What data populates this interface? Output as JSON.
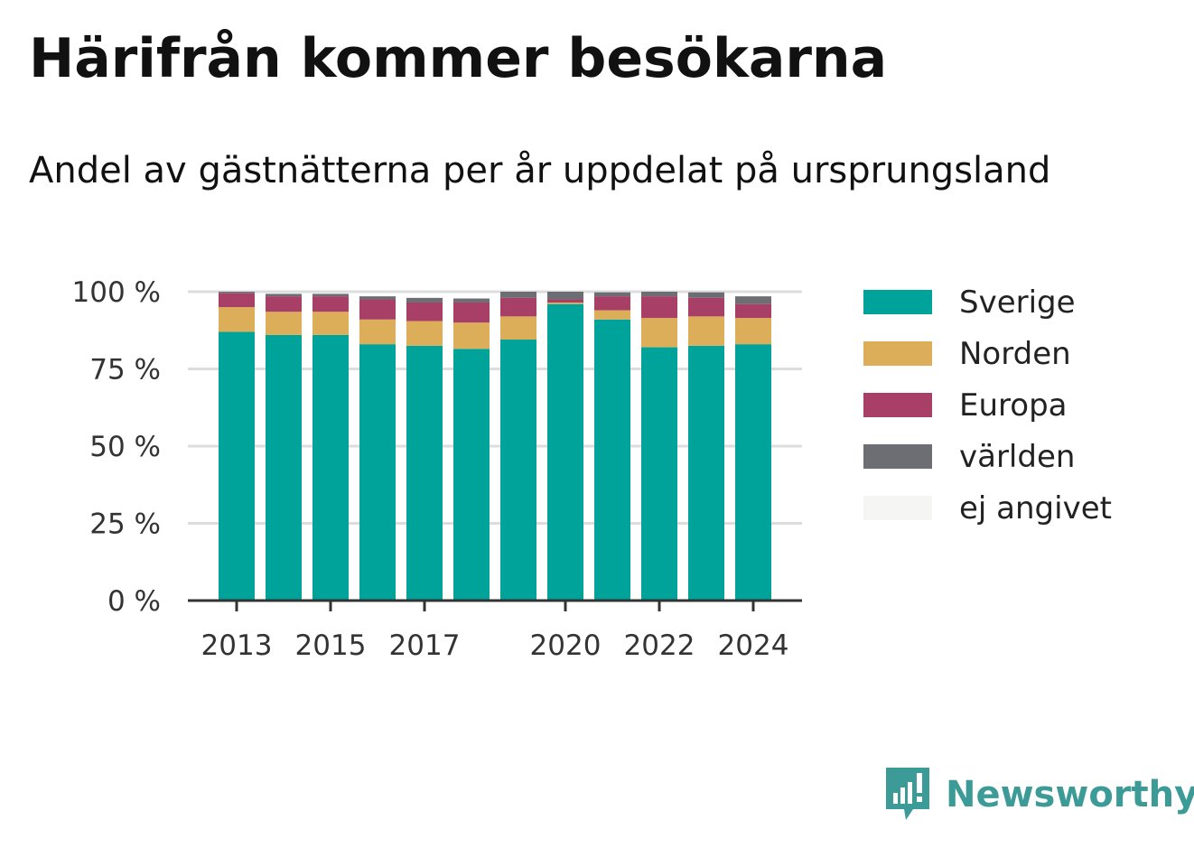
{
  "title": "Härifrån kommer besökarna",
  "subtitle": "Andel av gästnätterna per år uppdelat på ursprungsland",
  "brand": {
    "name": "Newsworthy",
    "color": "#3c9b97",
    "icon": "newsworthy-logo-icon"
  },
  "chart_data": {
    "type": "bar",
    "stacked": true,
    "years": [
      2013,
      2014,
      2015,
      2016,
      2017,
      2018,
      2019,
      2020,
      2021,
      2022,
      2023,
      2024
    ],
    "x_tick_labels": [
      "2013",
      "2015",
      "2017",
      "2020",
      "2022",
      "2024"
    ],
    "y_ticks": [
      0,
      25,
      50,
      75,
      100
    ],
    "y_tick_labels": [
      "0 %",
      "25 %",
      "50 %",
      "75 %",
      "100 %"
    ],
    "ylim": [
      0,
      100
    ],
    "grid": true,
    "legend_position": "right",
    "series": [
      {
        "name": "Sverige",
        "color": "#00a39a",
        "values": [
          87,
          86,
          86,
          83,
          82.5,
          81.5,
          84.5,
          96,
          91,
          82,
          82.5,
          83
        ]
      },
      {
        "name": "Norden",
        "color": "#dcae5a",
        "values": [
          8,
          7.5,
          7.5,
          8,
          8,
          8.5,
          7.5,
          0.5,
          3,
          9.5,
          9.5,
          8.5
        ]
      },
      {
        "name": "Europa",
        "color": "#a83f67",
        "values": [
          4.5,
          5,
          5,
          6.5,
          6,
          6.5,
          6,
          1,
          4.5,
          7,
          6,
          4.5
        ]
      },
      {
        "name": "världen",
        "color": "#6d6d74",
        "values": [
          0.5,
          0.8,
          0.8,
          1,
          1.5,
          1.3,
          2,
          2.5,
          1.3,
          1.5,
          1.8,
          2.5
        ]
      },
      {
        "name": "ej angivet",
        "color": "#f5f5f3",
        "values": [
          0,
          0,
          0,
          0,
          0,
          0,
          0,
          0,
          0,
          0,
          0,
          0
        ]
      }
    ]
  }
}
